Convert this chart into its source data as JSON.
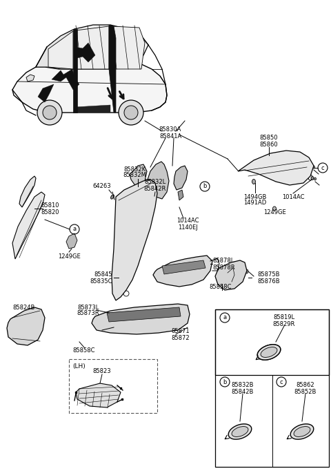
{
  "bg_color": "#ffffff",
  "lc": "#000000",
  "parts": {
    "85830A": "85830A",
    "85841A": "85841A",
    "85832K": "85832K",
    "85832M": "85832M",
    "64263": "64263",
    "85832L": "85832L",
    "85842R": "85842R",
    "1014AC_main": "1014AC",
    "1140EJ": "1140EJ",
    "85810": "85810",
    "85820": "85820",
    "1249GE_L": "1249GE",
    "85878L": "85878L",
    "85878R": "85878R",
    "85845": "85845",
    "85835C": "85835C",
    "85858C_r": "85858C",
    "85875B": "85875B",
    "85876B": "85876B",
    "85873L": "85873L",
    "85873R": "85873R",
    "85824B": "85824B",
    "85871": "85871",
    "85872": "85872",
    "85858C_l": "85858C",
    "LH": "(LH)",
    "85823": "85823",
    "85850": "85850",
    "85860": "85860",
    "1494GB": "1494GB",
    "1491AD": "1491AD",
    "1014AC_r": "1014AC",
    "1249GE_r": "1249GE",
    "85819L": "85819L",
    "85829R": "85829R",
    "85832B": "85832B",
    "85842B": "85842B",
    "85862": "85862",
    "85852B": "85852B"
  }
}
